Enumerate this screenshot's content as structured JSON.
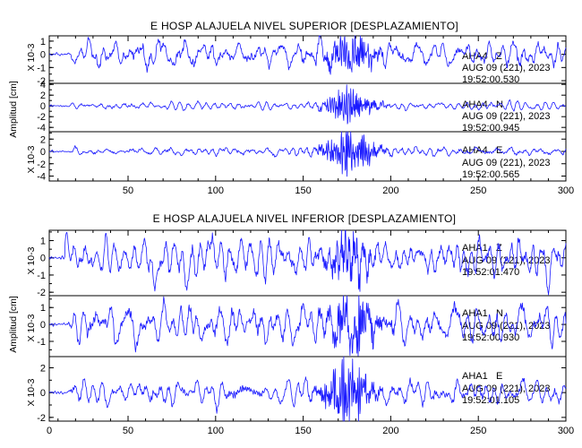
{
  "chart_data": [
    {
      "type": "line",
      "title": "E HOSP ALAJUELA NIVEL SUPERIOR [DESPLAZAMIENTO]",
      "ylabel": "Amplitud [cm]",
      "xlim": [
        5,
        300
      ],
      "xticks": [
        50,
        100,
        150,
        200,
        250,
        300
      ],
      "line_color": "#1a1aff",
      "panels": [
        {
          "name": "AHA4 Z",
          "yunit": "X 10-3",
          "ylim": [
            -2.2,
            1.4
          ],
          "yticks": [
            -2,
            -1,
            0,
            1
          ],
          "station": "AHA4",
          "component": "Z",
          "date": "AUG 09 (221), 2023",
          "time": "19:52:00.530",
          "start": [
            5,
            0
          ],
          "onset": 14,
          "pre_noise": 0.05,
          "noise": 0.45,
          "strong_amp": 1.6,
          "strong_center": 177,
          "strong_width": 14,
          "spikes": []
        },
        {
          "name": "AHA4 N",
          "yunit": "",
          "ylim": [
            -4.8,
            4.2
          ],
          "yticks": [
            -4,
            -2,
            0,
            2,
            4
          ],
          "station": "AHA4",
          "component": "N",
          "date": "AUG 09 (221), 2023",
          "time": "19:52:00.945",
          "start": [
            5,
            0
          ],
          "onset": 14,
          "pre_noise": 0.1,
          "noise": 0.35,
          "strong_amp": 3.8,
          "strong_center": 177,
          "strong_width": 13,
          "spikes": []
        },
        {
          "name": "AHA4 E",
          "yunit": "X 10-3",
          "ylim": [
            -4.8,
            3.2
          ],
          "yticks": [
            -4,
            -2,
            0,
            2
          ],
          "station": "AHA4",
          "component": "E",
          "date": "AUG 09 (221), 2023",
          "time": "19:52:00.565",
          "start": [
            5,
            0
          ],
          "onset": 14,
          "pre_noise": 0.1,
          "noise": 0.35,
          "strong_amp": 3.3,
          "strong_center": 177,
          "strong_width": 14,
          "spikes": []
        }
      ]
    },
    {
      "type": "line",
      "title": "E HOSP ALAJUELA NIVEL INFERIOR [DESPLAZAMIENTO]",
      "ylabel": "Amplitud [cm]",
      "xlim": [
        5,
        300
      ],
      "xticks": [
        0,
        50,
        100,
        150,
        200,
        250,
        300
      ],
      "line_color": "#1a1aff",
      "panels": [
        {
          "name": "AHA1 Z",
          "yunit": "X 10-3",
          "ylim": [
            -2.2,
            1.6
          ],
          "yticks": [
            -2,
            -1,
            0,
            1
          ],
          "station": "AHA1",
          "component": "Z",
          "date": "AUG 09 (221), 2023",
          "time": "19:52:01.470",
          "start": [
            5,
            0
          ],
          "onset": 14,
          "pre_noise": 0.05,
          "noise": 0.55,
          "strong_amp": 1.1,
          "strong_center": 175,
          "strong_width": 14,
          "spikes": [
            [
              15,
              1.45
            ],
            [
              65,
              -1.9
            ],
            [
              83,
              -2.0
            ],
            [
              98,
              0.9
            ],
            [
              290,
              -1.9
            ]
          ]
        },
        {
          "name": "AHA1 N",
          "yunit": "X 10-3",
          "ylim": [
            -1.9,
            1.7
          ],
          "yticks": [
            -1,
            0,
            1
          ],
          "station": "AHA1",
          "component": "N",
          "date": "AUG 09 (221), 2023",
          "time": "19:52:00.930",
          "start": [
            5,
            0
          ],
          "onset": 14,
          "pre_noise": 0.05,
          "noise": 0.55,
          "strong_amp": 1.5,
          "strong_center": 178,
          "strong_width": 16,
          "spikes": []
        },
        {
          "name": "AHA1 E",
          "yunit": "X 10-3",
          "ylim": [
            -2.3,
            2.9
          ],
          "yticks": [
            -2,
            0,
            2
          ],
          "station": "AHA1",
          "component": "E",
          "date": "AUG 09 (221), 2023",
          "time": "19:52:01.105",
          "start": [
            5,
            0
          ],
          "onset": 14,
          "pre_noise": 0.05,
          "noise": 0.45,
          "strong_amp": 2.6,
          "strong_center": 175,
          "strong_width": 13,
          "spikes": []
        }
      ]
    }
  ]
}
